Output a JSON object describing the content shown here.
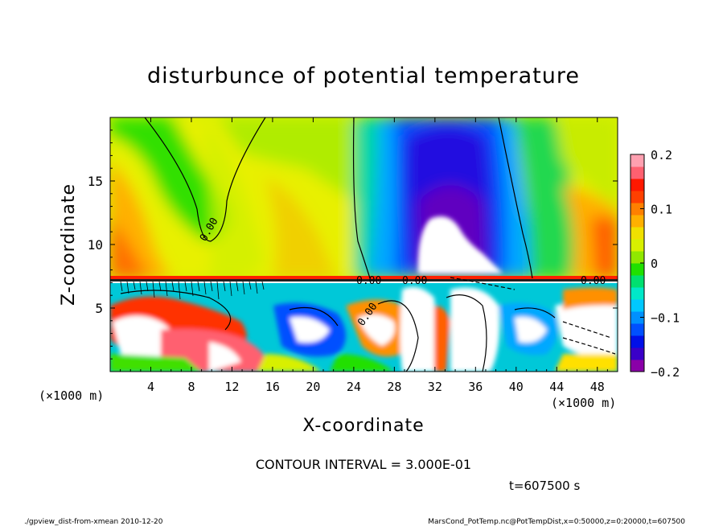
{
  "chart_data": {
    "type": "heatmap",
    "title": "disturbunce of potential temperature",
    "xlabel": "X-coordinate",
    "ylabel": "Z-coordinate",
    "x_unit": "(×1000 m)",
    "y_unit": "(×1000 m)",
    "xlim": [
      0,
      50
    ],
    "ylim": [
      0,
      20
    ],
    "x_ticks": [
      4,
      8,
      12,
      16,
      20,
      24,
      28,
      32,
      36,
      40,
      44,
      48
    ],
    "y_ticks": [
      5,
      10,
      15
    ],
    "colorbar": {
      "min": -0.2,
      "max": 0.2,
      "ticks": [
        -0.2,
        -0.1,
        0,
        0.1,
        0.2
      ],
      "tick_labels": [
        "−0.2",
        "−0.1",
        "0",
        "0.1",
        "0.2"
      ],
      "colors": [
        "#8a00a8",
        "#3a00c8",
        "#0010e8",
        "#0050ff",
        "#0090ff",
        "#00c8ff",
        "#00e8c8",
        "#00e070",
        "#20e000",
        "#90e800",
        "#d8f000",
        "#f0e000",
        "#ffb000",
        "#ff8000",
        "#ff4000",
        "#ff1800",
        "#ff6070",
        "#ffa0b0"
      ]
    },
    "contour_labels": [
      "0.00",
      "0.00",
      "0.00",
      "0.00",
      "0.00"
    ],
    "contour_interval_text": "CONTOUR INTERVAL = 3.000E-01",
    "time_text": "t=607500 s"
  },
  "footer": {
    "left": "./gpview_dist-from-xmean 2010-12-20",
    "right": "MarsCond_PotTemp.nc@PotTempDist,x=0:50000,z=0:20000,t=607500"
  }
}
